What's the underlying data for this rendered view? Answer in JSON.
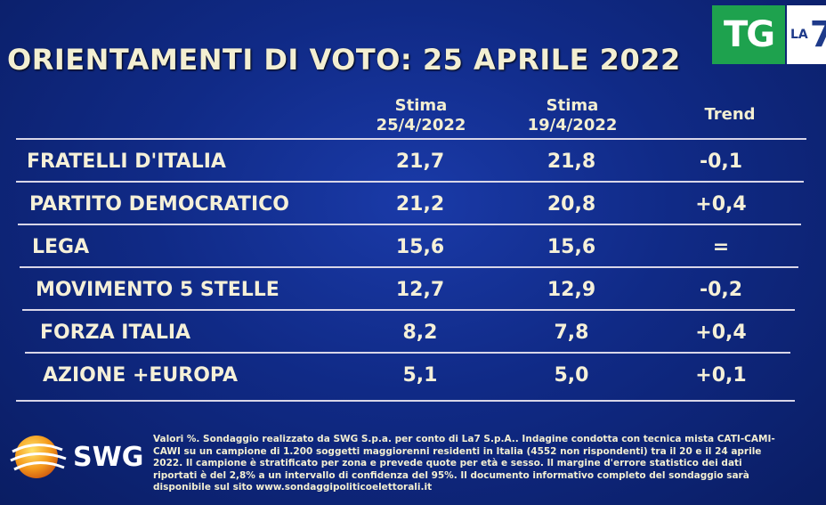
{
  "title": "ORIENTAMENTI DI VOTO: 25 APRILE 2022",
  "logo": {
    "tg": "TG",
    "la": "LA",
    "seven": "7"
  },
  "headers": {
    "col1": [
      "Stima",
      "25/4/2022"
    ],
    "col2": [
      "Stima",
      "19/4/2022"
    ],
    "col3": "Trend"
  },
  "rows": [
    {
      "party": "FRATELLI D'ITALIA",
      "a": "21,7",
      "b": "21,8",
      "trend": "-0,1"
    },
    {
      "party": "PARTITO DEMOCRATICO",
      "a": "21,2",
      "b": "20,8",
      "trend": "+0,4"
    },
    {
      "party": "LEGA",
      "a": "15,6",
      "b": "15,6",
      "trend": "="
    },
    {
      "party": "MOVIMENTO 5 STELLE",
      "a": "12,7",
      "b": "12,9",
      "trend": "-0,2"
    },
    {
      "party": "FORZA ITALIA",
      "a": "8,2",
      "b": "7,8",
      "trend": "+0,4"
    },
    {
      "party": "AZIONE +EUROPA",
      "a": "5,1",
      "b": "5,0",
      "trend": "+0,1"
    }
  ],
  "brand": "SWG",
  "note": "Valori %. Sondaggio realizzato da SWG S.p.a. per conto di La7 S.p.A.. Indagine condotta con tecnica mista CATI-CAMI-CAWI su un campione di 1.200 soggetti maggiorenni residenti in Italia (4552 non rispondenti) tra il 20 e il 24 aprile 2022. Il campione è stratificato per zona e prevede quote per età e sesso. Il margine d'errore statistico dei dati riportati è del 2,8% a un intervallo di confidenza del 95%. Il documento informativo completo del sondaggio sarà disponibile sul sito www.sondaggipoliticoelettorali.it"
}
